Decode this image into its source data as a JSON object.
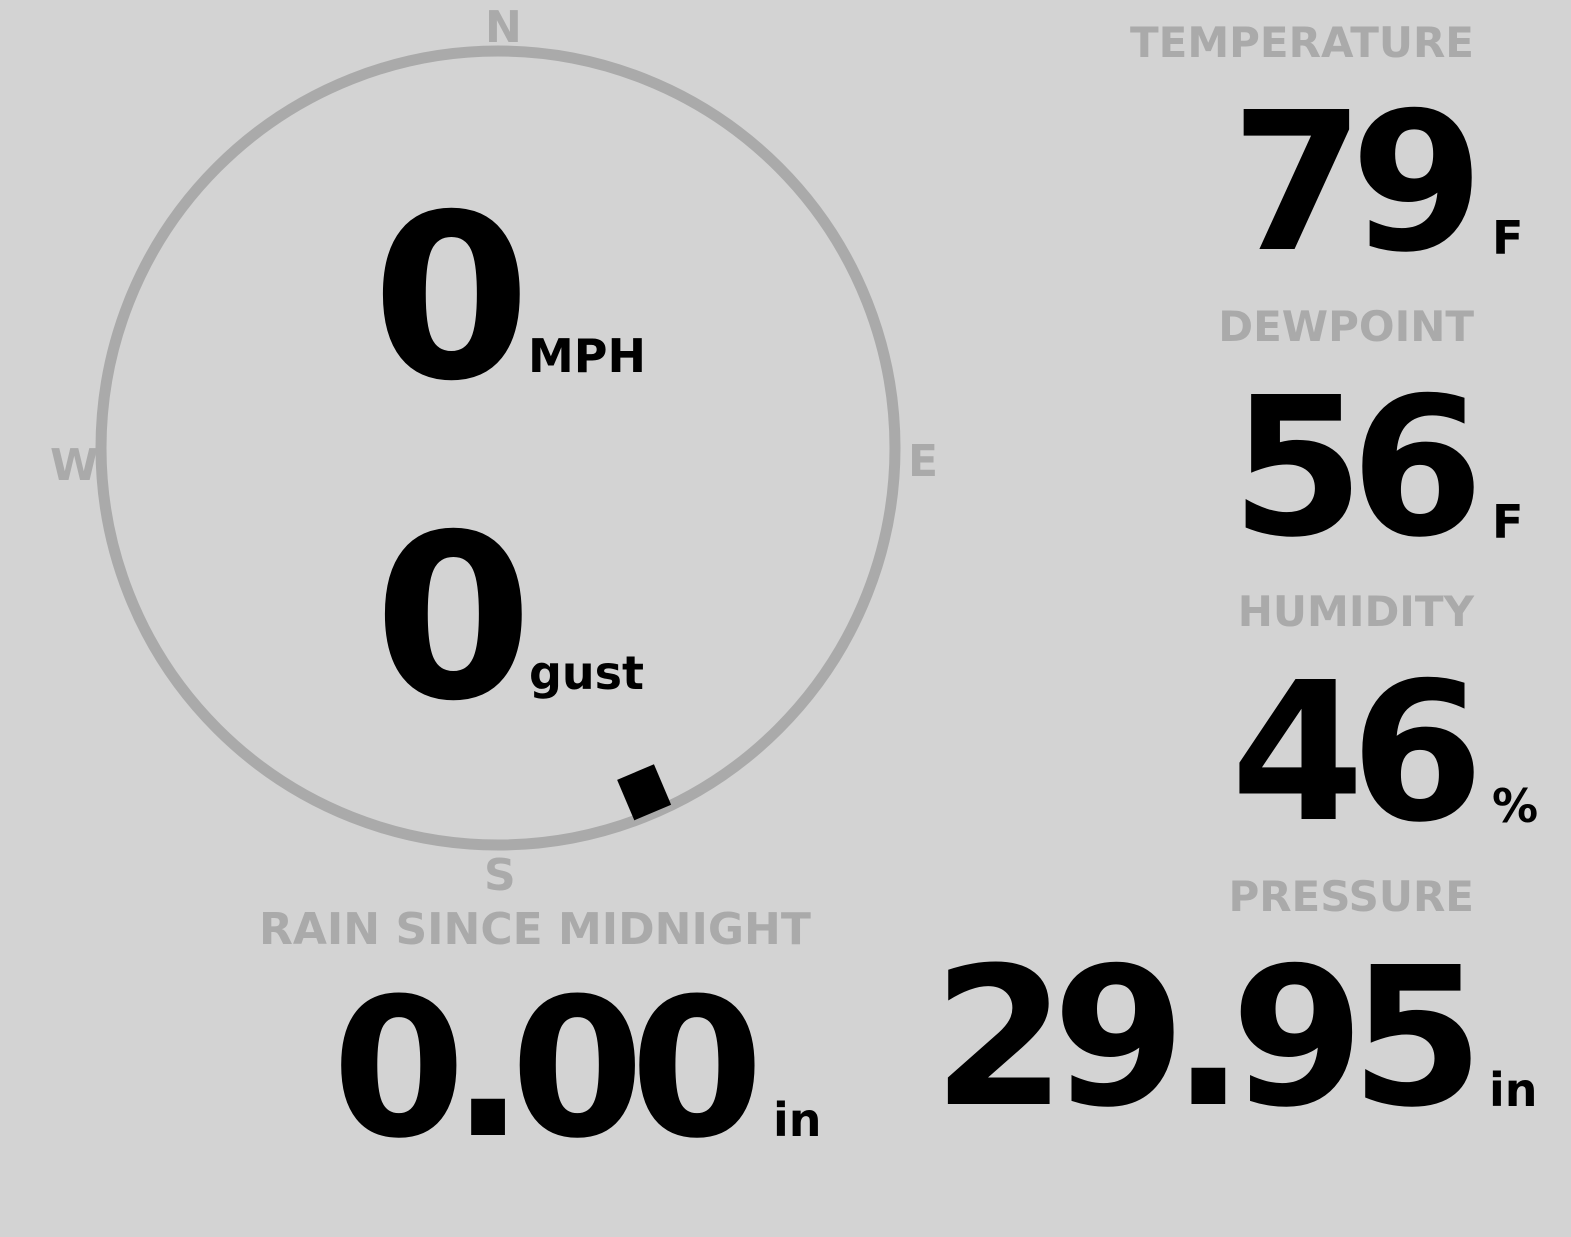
{
  "colors": {
    "background": "#d3d3d3",
    "muted": "#aaaaaa",
    "value": "#000000"
  },
  "wind": {
    "compass": {
      "n": "N",
      "e": "E",
      "s": "S",
      "w": "W"
    },
    "speed": "0",
    "speed_unit": "MPH",
    "gust": "0",
    "gust_unit": "gust",
    "direction_degrees": 157
  },
  "temperature": {
    "label": "TEMPERATURE",
    "value": "79",
    "unit": "F"
  },
  "dewpoint": {
    "label": "DEWPOINT",
    "value": "56",
    "unit": "F"
  },
  "humidity": {
    "label": "HUMIDITY",
    "value": "46",
    "unit": "%"
  },
  "rain": {
    "label": "RAIN SINCE MIDNIGHT",
    "value": "0.00",
    "unit": "in"
  },
  "pressure": {
    "label": "PRESSURE",
    "value": "29.95",
    "unit": "in"
  }
}
